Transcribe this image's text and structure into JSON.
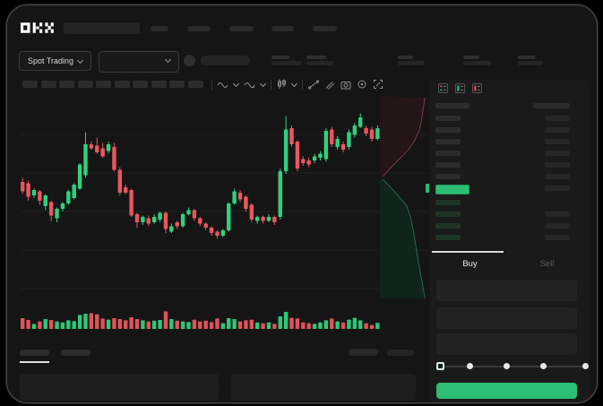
{
  "app": {
    "brand": "OKX"
  },
  "colors": {
    "accent_green": "#2dbd74",
    "candle_up": "#30d17f",
    "candle_down": "#e8575f",
    "depth_ask_fill": "#241518",
    "depth_ask_line": "#7c4046",
    "depth_bid_fill": "#10241b",
    "depth_bid_line": "#2c6e52"
  },
  "market_selector": {
    "label": "Spot Trading"
  },
  "toolbar": {
    "icons": [
      "indicator-wave-icon",
      "indicator-wave2-icon",
      "candle-style-icon",
      "trendline-icon",
      "brush-icon",
      "camera-icon",
      "settings-icon",
      "expand-icon"
    ]
  },
  "order_book": {
    "view_icons": [
      "book-split-icon",
      "book-bids-icon",
      "book-asks-icon"
    ],
    "ask_rows": 6,
    "bid_rows": 4,
    "last_price_highlight_color": "#2dbd74"
  },
  "trade_form": {
    "tabs": [
      {
        "label": "Buy",
        "active": true
      },
      {
        "label": "Sell",
        "active": false
      }
    ],
    "fields": 3,
    "slider": {
      "positions": 5,
      "value_index": 0
    },
    "submit": {
      "label": "",
      "color": "#2dbd74"
    }
  },
  "chart_data": {
    "type": "candlestick",
    "title": "",
    "xlabel": "",
    "ylabel": "",
    "note": "Unlabeled mock price chart; OHLC normalized to 0-100 scale",
    "ylim": [
      0,
      100
    ],
    "grid": true,
    "candles": [
      [
        42,
        45,
        33,
        35
      ],
      [
        41,
        43,
        28,
        31
      ],
      [
        32,
        37,
        30,
        36
      ],
      [
        35,
        36,
        25,
        28
      ],
      [
        24,
        33,
        21,
        32
      ],
      [
        27,
        28,
        13,
        17
      ],
      [
        15,
        23,
        12,
        22
      ],
      [
        22,
        27,
        20,
        26
      ],
      [
        26,
        36,
        25,
        35
      ],
      [
        30,
        41,
        29,
        40
      ],
      [
        37,
        56,
        36,
        55
      ],
      [
        47,
        79,
        45,
        70
      ],
      [
        70,
        72,
        66,
        67
      ],
      [
        69,
        75,
        63,
        64
      ],
      [
        67,
        71,
        60,
        61
      ],
      [
        65,
        72,
        63,
        70
      ],
      [
        68,
        71,
        50,
        51
      ],
      [
        51,
        53,
        32,
        34
      ],
      [
        38,
        40,
        33,
        34
      ],
      [
        36,
        37,
        16,
        17
      ],
      [
        18,
        19,
        8,
        12
      ],
      [
        12,
        17,
        10,
        16
      ],
      [
        15,
        17,
        9,
        11
      ],
      [
        12,
        18,
        11,
        16
      ],
      [
        14,
        20,
        12,
        19
      ],
      [
        19,
        20,
        4,
        7
      ],
      [
        5,
        11,
        4,
        9
      ],
      [
        12,
        13,
        7,
        9
      ],
      [
        9,
        19,
        8,
        18
      ],
      [
        18,
        23,
        17,
        21
      ],
      [
        21,
        22,
        13,
        15
      ],
      [
        15,
        16,
        9,
        11
      ],
      [
        11,
        12,
        6,
        8
      ],
      [
        8,
        9,
        2,
        4
      ],
      [
        5,
        6,
        0,
        2
      ],
      [
        2,
        7,
        1,
        6
      ],
      [
        6,
        27,
        5,
        26
      ],
      [
        26,
        37,
        25,
        35
      ],
      [
        34,
        36,
        27,
        29
      ],
      [
        31,
        32,
        20,
        22
      ],
      [
        25,
        26,
        12,
        14
      ],
      [
        13,
        17,
        11,
        16
      ],
      [
        16,
        17,
        11,
        13
      ],
      [
        13,
        18,
        12,
        16
      ],
      [
        16,
        17,
        10,
        12
      ],
      [
        16,
        52,
        14,
        50
      ],
      [
        50,
        91,
        48,
        81
      ],
      [
        82,
        84,
        68,
        70
      ],
      [
        72,
        73,
        50,
        52
      ],
      [
        59,
        61,
        54,
        56
      ],
      [
        58,
        60,
        53,
        55
      ],
      [
        58,
        63,
        56,
        61
      ],
      [
        60,
        65,
        58,
        63
      ],
      [
        59,
        82,
        57,
        80
      ],
      [
        81,
        83,
        68,
        70
      ],
      [
        68,
        76,
        66,
        74
      ],
      [
        70,
        72,
        64,
        66
      ],
      [
        68,
        81,
        66,
        79
      ],
      [
        77,
        86,
        75,
        84
      ],
      [
        83,
        93,
        82,
        90
      ],
      [
        82,
        84,
        76,
        78
      ],
      [
        81,
        83,
        72,
        74
      ],
      [
        74,
        84,
        73,
        82
      ]
    ],
    "volume": [
      60,
      50,
      28,
      42,
      55,
      50,
      42,
      36,
      48,
      44,
      78,
      85,
      88,
      82,
      58,
      52,
      60,
      55,
      48,
      65,
      55,
      48,
      42,
      46,
      50,
      98,
      55,
      46,
      42,
      38,
      52,
      42,
      46,
      38,
      58,
      32,
      60,
      55,
      42,
      48,
      52,
      36,
      32,
      36,
      28,
      70,
      95,
      62,
      58,
      36,
      32,
      28,
      36,
      48,
      58,
      42,
      36,
      52,
      62,
      48,
      32,
      22,
      34
    ],
    "depth": {
      "asks": [
        [
          0.93,
          0.02
        ],
        [
          0.9,
          0.14
        ],
        [
          0.86,
          0.3
        ],
        [
          0.82,
          0.42
        ],
        [
          0.72,
          0.55
        ],
        [
          0.6,
          0.66
        ],
        [
          0.44,
          0.76
        ],
        [
          0.24,
          0.88
        ],
        [
          0.06,
          1.0
        ]
      ],
      "bids": [
        [
          0.06,
          0
        ],
        [
          0.2,
          0.06
        ],
        [
          0.36,
          0.13
        ],
        [
          0.55,
          0.22
        ],
        [
          0.64,
          0.33
        ],
        [
          0.7,
          0.45
        ],
        [
          0.76,
          0.6
        ],
        [
          0.82,
          0.75
        ],
        [
          0.88,
          0.88
        ],
        [
          0.93,
          1.0
        ]
      ]
    }
  }
}
